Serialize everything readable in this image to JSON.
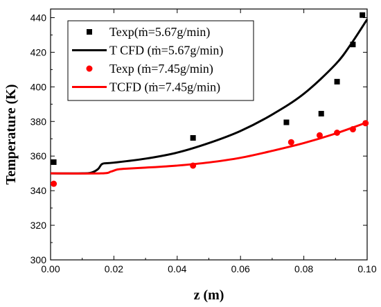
{
  "chart_data": {
    "type": "line",
    "xlabel": "z (m)",
    "ylabel": "Temperature (K)",
    "xlim": [
      0.0,
      0.1
    ],
    "ylim": [
      300,
      445
    ],
    "x_ticks": [
      "0.00",
      "0.02",
      "0.04",
      "0.06",
      "0.08",
      "0.10"
    ],
    "y_ticks": [
      "300",
      "320",
      "340",
      "360",
      "380",
      "400",
      "420",
      "440"
    ],
    "grid": false,
    "legend_position": "top-left",
    "series": [
      {
        "name": "Texp(ṁ=5.67g/min)",
        "kind": "scatter",
        "marker": "square",
        "color": "#000000",
        "x": [
          0.001,
          0.045,
          0.0745,
          0.0855,
          0.0905,
          0.0955,
          0.0985
        ],
        "y": [
          356.5,
          370.5,
          379.5,
          384.5,
          403,
          424.5,
          441.5
        ]
      },
      {
        "name": "T CFD (ṁ=5.67g/min)",
        "kind": "line",
        "color": "#000000",
        "x": [
          0.0,
          0.01,
          0.013,
          0.015,
          0.016,
          0.017,
          0.02,
          0.03,
          0.04,
          0.05,
          0.06,
          0.07,
          0.08,
          0.09,
          0.095,
          0.1
        ],
        "y": [
          350,
          350,
          350.5,
          352.5,
          355,
          355.8,
          356.2,
          358.5,
          362,
          367.5,
          374.5,
          384,
          396,
          413,
          425,
          439
        ]
      },
      {
        "name": "Texp (ṁ=7.45g/min)",
        "kind": "scatter",
        "marker": "circle",
        "color": "#ff0000",
        "x": [
          0.001,
          0.045,
          0.076,
          0.085,
          0.0905,
          0.0955,
          0.0995
        ],
        "y": [
          344,
          354.5,
          368,
          372,
          373.5,
          375.5,
          379
        ]
      },
      {
        "name": "TCFD  (ṁ=7.45g/min)",
        "kind": "line",
        "color": "#ff0000",
        "x": [
          0.0,
          0.016,
          0.019,
          0.021,
          0.023,
          0.03,
          0.04,
          0.05,
          0.06,
          0.07,
          0.08,
          0.09,
          0.1
        ],
        "y": [
          350,
          350,
          351,
          352.2,
          352.6,
          353.3,
          354.5,
          356.3,
          359,
          363,
          367.5,
          373,
          379.5
        ]
      }
    ]
  }
}
